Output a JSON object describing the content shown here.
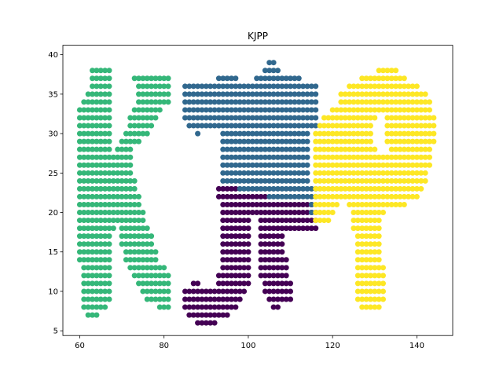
{
  "chart_data": {
    "type": "scatter",
    "title": "KJPP",
    "xlabel": "",
    "ylabel": "",
    "xlim": [
      56,
      148.5
    ],
    "ylim": [
      4.4,
      41.2
    ],
    "xticks": [
      60,
      80,
      100,
      120,
      140
    ],
    "yticks": [
      5,
      10,
      15,
      20,
      25,
      30,
      35,
      40
    ],
    "grid": false,
    "legend": "none",
    "series": [
      {
        "color": "#440154",
        "rows": [
          {
            "y": 6,
            "xs": [
              [
                88,
                92
              ]
            ]
          },
          {
            "y": 7,
            "xs": [
              [
                86,
                95
              ]
            ]
          },
          {
            "y": 8,
            "xs": [
              [
                85,
                97
              ],
              [
                106,
                107
              ]
            ]
          },
          {
            "y": 9,
            "xs": [
              [
                85,
                98
              ],
              [
                105,
                110
              ]
            ]
          },
          {
            "y": 10,
            "xs": [
              [
                85,
                99
              ],
              [
                104,
                110
              ]
            ]
          },
          {
            "y": 11,
            "xs": [
              [
                87,
                88
              ],
              [
                93,
                100
              ],
              [
                104,
                110
              ]
            ]
          },
          {
            "y": 12,
            "xs": [
              [
                93,
                100
              ],
              [
                103,
                109
              ]
            ]
          },
          {
            "y": 13,
            "xs": [
              [
                94,
                100
              ],
              [
                103,
                109
              ]
            ]
          },
          {
            "y": 14,
            "xs": [
              [
                94,
                100
              ],
              [
                103,
                109
              ]
            ]
          },
          {
            "y": 15,
            "xs": [
              [
                94,
                100
              ],
              [
                103,
                108
              ]
            ]
          },
          {
            "y": 16,
            "xs": [
              [
                94,
                100
              ],
              [
                103,
                108
              ]
            ]
          },
          {
            "y": 17,
            "xs": [
              [
                94,
                100
              ],
              [
                103,
                108
              ]
            ]
          },
          {
            "y": 18,
            "xs": [
              [
                94,
                100
              ],
              [
                103,
                116
              ]
            ]
          },
          {
            "y": 19,
            "xs": [
              [
                94,
                100
              ],
              [
                103,
                116
              ]
            ]
          },
          {
            "y": 20,
            "xs": [
              [
                94,
                116
              ]
            ]
          },
          {
            "y": 21,
            "xs": [
              [
                94,
                115
              ]
            ]
          },
          {
            "y": 22,
            "xs": [
              [
                93,
                104
              ]
            ]
          },
          {
            "y": 23,
            "xs": [
              [
                93,
                97
              ]
            ]
          }
        ]
      },
      {
        "color": "#31688e",
        "rows": [
          {
            "y": 20,
            "xs": [
              [
                115,
                115
              ]
            ]
          },
          {
            "y": 21,
            "xs": [
              [
                115,
                115
              ]
            ]
          },
          {
            "y": 22,
            "xs": [
              [
                105,
                116
              ]
            ]
          },
          {
            "y": 23,
            "xs": [
              [
                98,
                116
              ]
            ]
          },
          {
            "y": 24,
            "xs": [
              [
                94,
                114
              ]
            ]
          },
          {
            "y": 25,
            "xs": [
              [
                94,
                114
              ]
            ]
          },
          {
            "y": 26,
            "xs": [
              [
                94,
                114
              ]
            ]
          },
          {
            "y": 27,
            "xs": [
              [
                94,
                114
              ]
            ]
          },
          {
            "y": 28,
            "xs": [
              [
                94,
                114
              ]
            ]
          },
          {
            "y": 29,
            "xs": [
              [
                94,
                114
              ]
            ]
          },
          {
            "y": 30,
            "xs": [
              [
                88,
                88
              ],
              [
                94,
                114
              ]
            ]
          },
          {
            "y": 31,
            "xs": [
              [
                86,
                116
              ]
            ]
          },
          {
            "y": 32,
            "xs": [
              [
                85,
                116
              ]
            ]
          },
          {
            "y": 33,
            "xs": [
              [
                85,
                116
              ]
            ]
          },
          {
            "y": 34,
            "xs": [
              [
                85,
                116
              ]
            ]
          },
          {
            "y": 35,
            "xs": [
              [
                85,
                116
              ]
            ]
          },
          {
            "y": 36,
            "xs": [
              [
                85,
                116
              ]
            ]
          },
          {
            "y": 37,
            "xs": [
              [
                93,
                97
              ],
              [
                102,
                112
              ]
            ]
          },
          {
            "y": 38,
            "xs": [
              [
                104,
                107
              ]
            ]
          },
          {
            "y": 39,
            "xs": [
              [
                105,
                106
              ]
            ]
          }
        ]
      },
      {
        "color": "#35b779",
        "rows": [
          {
            "y": 7,
            "xs": [
              [
                62,
                64
              ]
            ]
          },
          {
            "y": 8,
            "xs": [
              [
                61,
                66
              ],
              [
                79,
                81
              ]
            ]
          },
          {
            "y": 9,
            "xs": [
              [
                61,
                67
              ],
              [
                76,
                81
              ]
            ]
          },
          {
            "y": 10,
            "xs": [
              [
                61,
                67
              ],
              [
                75,
                81
              ]
            ]
          },
          {
            "y": 11,
            "xs": [
              [
                61,
                67
              ],
              [
                74,
                81
              ]
            ]
          },
          {
            "y": 12,
            "xs": [
              [
                61,
                67
              ],
              [
                73,
                81
              ]
            ]
          },
          {
            "y": 13,
            "xs": [
              [
                61,
                67
              ],
              [
                72,
                80
              ]
            ]
          },
          {
            "y": 14,
            "xs": [
              [
                60,
                67
              ],
              [
                71,
                78
              ]
            ]
          },
          {
            "y": 15,
            "xs": [
              [
                60,
                67
              ],
              [
                71,
                78
              ]
            ]
          },
          {
            "y": 16,
            "xs": [
              [
                60,
                67
              ],
              [
                70,
                77
              ]
            ]
          },
          {
            "y": 17,
            "xs": [
              [
                60,
                67
              ],
              [
                70,
                77
              ]
            ]
          },
          {
            "y": 18,
            "xs": [
              [
                60,
                68
              ],
              [
                70,
                76
              ]
            ]
          },
          {
            "y": 19,
            "xs": [
              [
                60,
                75
              ]
            ]
          },
          {
            "y": 20,
            "xs": [
              [
                60,
                75
              ]
            ]
          },
          {
            "y": 21,
            "xs": [
              [
                60,
                74
              ]
            ]
          },
          {
            "y": 22,
            "xs": [
              [
                60,
                74
              ]
            ]
          },
          {
            "y": 23,
            "xs": [
              [
                60,
                73
              ]
            ]
          },
          {
            "y": 24,
            "xs": [
              [
                60,
                73
              ]
            ]
          },
          {
            "y": 25,
            "xs": [
              [
                60,
                72
              ]
            ]
          },
          {
            "y": 26,
            "xs": [
              [
                60,
                72
              ]
            ]
          },
          {
            "y": 27,
            "xs": [
              [
                60,
                72
              ]
            ]
          },
          {
            "y": 28,
            "xs": [
              [
                60,
                67
              ],
              [
                69,
                72
              ]
            ]
          },
          {
            "y": 29,
            "xs": [
              [
                60,
                67
              ],
              [
                70,
                74
              ]
            ]
          },
          {
            "y": 30,
            "xs": [
              [
                60,
                67
              ],
              [
                71,
                76
              ]
            ]
          },
          {
            "y": 31,
            "xs": [
              [
                60,
                67
              ],
              [
                72,
                77
              ]
            ]
          },
          {
            "y": 32,
            "xs": [
              [
                60,
                67
              ],
              [
                72,
                78
              ]
            ]
          },
          {
            "y": 33,
            "xs": [
              [
                60,
                67
              ],
              [
                73,
                79
              ]
            ]
          },
          {
            "y": 34,
            "xs": [
              [
                61,
                67
              ],
              [
                74,
                81
              ]
            ]
          },
          {
            "y": 35,
            "xs": [
              [
                62,
                67
              ],
              [
                74,
                81
              ]
            ]
          },
          {
            "y": 36,
            "xs": [
              [
                63,
                67
              ],
              [
                74,
                81
              ]
            ]
          },
          {
            "y": 37,
            "xs": [
              [
                63,
                67
              ],
              [
                73,
                81
              ]
            ]
          },
          {
            "y": 38,
            "xs": [
              [
                63,
                67
              ]
            ]
          }
        ]
      },
      {
        "color": "#fde725",
        "rows": [
          {
            "y": 8,
            "xs": [
              [
                127,
                131
              ]
            ]
          },
          {
            "y": 9,
            "xs": [
              [
                126,
                132
              ]
            ]
          },
          {
            "y": 10,
            "xs": [
              [
                126,
                132
              ]
            ]
          },
          {
            "y": 11,
            "xs": [
              [
                126,
                132
              ]
            ]
          },
          {
            "y": 12,
            "xs": [
              [
                126,
                132
              ]
            ]
          },
          {
            "y": 13,
            "xs": [
              [
                126,
                132
              ]
            ]
          },
          {
            "y": 14,
            "xs": [
              [
                126,
                131
              ]
            ]
          },
          {
            "y": 15,
            "xs": [
              [
                126,
                131
              ]
            ]
          },
          {
            "y": 16,
            "xs": [
              [
                126,
                131
              ]
            ]
          },
          {
            "y": 17,
            "xs": [
              [
                126,
                131
              ]
            ]
          },
          {
            "y": 18,
            "xs": [
              [
                125,
                131
              ]
            ]
          },
          {
            "y": 19,
            "xs": [
              [
                116,
                119
              ],
              [
                125,
                131
              ]
            ]
          },
          {
            "y": 20,
            "xs": [
              [
                116,
                120
              ],
              [
                125,
                132
              ]
            ]
          },
          {
            "y": 21,
            "xs": [
              [
                116,
                121
              ],
              [
                124,
                137
              ]
            ]
          },
          {
            "y": 22,
            "xs": [
              [
                116,
                140
              ]
            ]
          },
          {
            "y": 23,
            "xs": [
              [
                116,
                141
              ]
            ]
          },
          {
            "y": 24,
            "xs": [
              [
                116,
                142
              ]
            ]
          },
          {
            "y": 25,
            "xs": [
              [
                116,
                142
              ]
            ]
          },
          {
            "y": 26,
            "xs": [
              [
                116,
                143
              ]
            ]
          },
          {
            "y": 27,
            "xs": [
              [
                116,
                143
              ]
            ]
          },
          {
            "y": 28,
            "xs": [
              [
                116,
                130
              ],
              [
                134,
                143
              ]
            ]
          },
          {
            "y": 29,
            "xs": [
              [
                116,
                129
              ],
              [
                133,
                144
              ]
            ]
          },
          {
            "y": 30,
            "xs": [
              [
                116,
                129
              ],
              [
                133,
                144
              ]
            ]
          },
          {
            "y": 31,
            "xs": [
              [
                117,
                129
              ],
              [
                133,
                144
              ]
            ]
          },
          {
            "y": 32,
            "xs": [
              [
                118,
                130
              ],
              [
                133,
                144
              ]
            ]
          },
          {
            "y": 33,
            "xs": [
              [
                120,
                143
              ]
            ]
          },
          {
            "y": 34,
            "xs": [
              [
                122,
                143
              ]
            ]
          },
          {
            "y": 35,
            "xs": [
              [
                122,
                142
              ]
            ]
          },
          {
            "y": 36,
            "xs": [
              [
                124,
                140
              ]
            ]
          },
          {
            "y": 37,
            "xs": [
              [
                127,
                137
              ]
            ]
          },
          {
            "y": 38,
            "xs": [
              [
                131,
                135
              ]
            ]
          }
        ]
      }
    ]
  }
}
